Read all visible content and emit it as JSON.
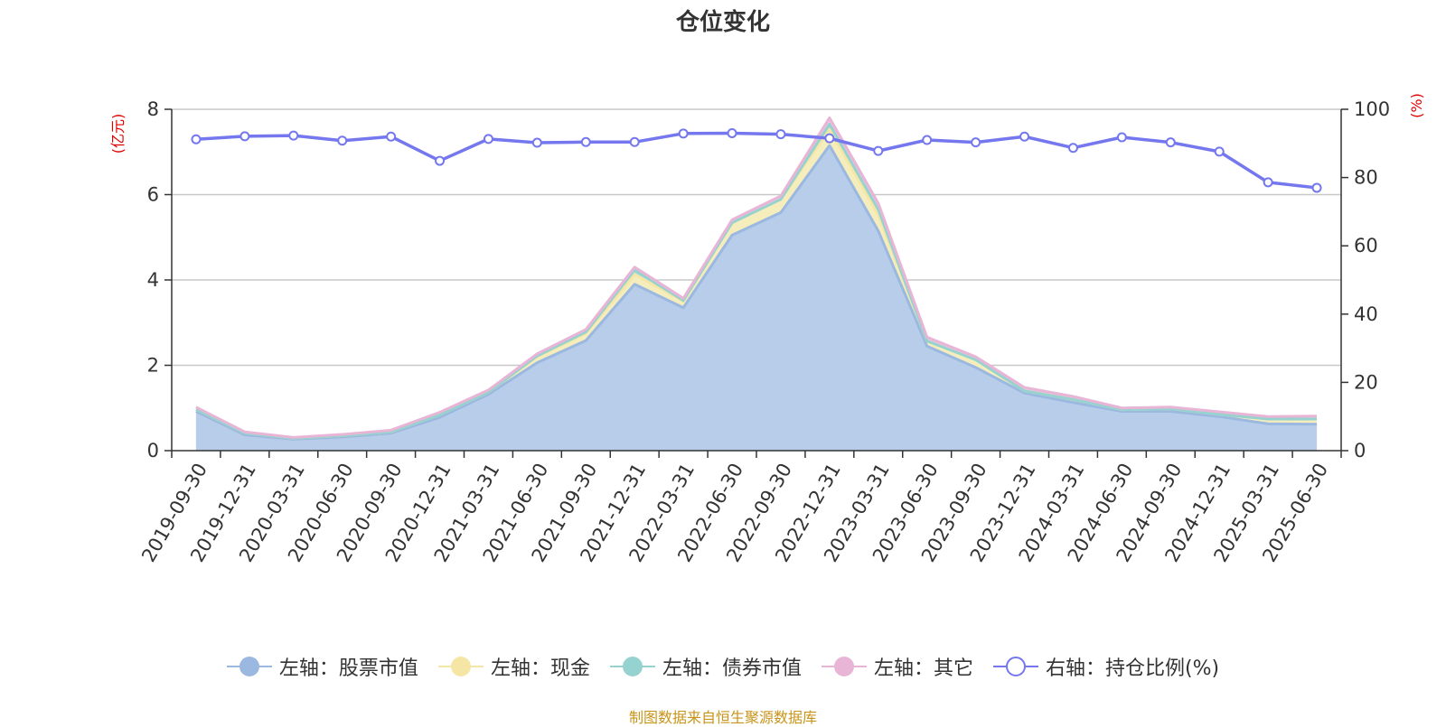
{
  "title": "仓位变化",
  "source": "制图数据来自恒生聚源数据库",
  "chart_data": {
    "type": "area",
    "title": "仓位变化",
    "left_axis_unit": "(亿元)",
    "right_axis_unit": "(%)",
    "ylim_left": [
      0,
      8
    ],
    "yticks_left": [
      "0",
      "2",
      "4",
      "6",
      "8"
    ],
    "ylim_right": [
      0,
      100
    ],
    "yticks_right": [
      "0",
      "20",
      "40",
      "60",
      "80",
      "100"
    ],
    "grid": true,
    "legend_position": "bottom",
    "categories": [
      "2019-09-30",
      "2019-12-31",
      "2020-03-31",
      "2020-06-30",
      "2020-09-30",
      "2020-12-31",
      "2021-03-31",
      "2021-06-30",
      "2021-09-30",
      "2021-12-31",
      "2022-03-31",
      "2022-06-30",
      "2022-09-30",
      "2022-12-31",
      "2023-03-31",
      "2023-06-30",
      "2023-09-30",
      "2023-12-31",
      "2024-03-31",
      "2024-06-30",
      "2024-09-30",
      "2024-12-31",
      "2025-03-31",
      "2025-06-30"
    ],
    "series": [
      {
        "name": "左轴：股票市值",
        "axis": "left",
        "stacked": true,
        "color": "#9ab8e0",
        "fill": "#b8cdea",
        "values": [
          0.92,
          0.37,
          0.27,
          0.32,
          0.41,
          0.78,
          1.32,
          2.06,
          2.58,
          3.9,
          3.35,
          5.05,
          5.58,
          7.15,
          5.15,
          2.45,
          1.95,
          1.35,
          1.13,
          0.92,
          0.92,
          0.8,
          0.63,
          0.62
        ]
      },
      {
        "name": "左轴：现金",
        "axis": "left",
        "stacked": true,
        "color": "#f5e6a6",
        "fill": "#f6edbc",
        "values": [
          0.05,
          0.04,
          0.02,
          0.03,
          0.03,
          0.06,
          0.05,
          0.14,
          0.17,
          0.23,
          0.15,
          0.29,
          0.31,
          0.38,
          0.38,
          0.12,
          0.18,
          0.05,
          0.07,
          0.04,
          0.06,
          0.05,
          0.11,
          0.12
        ]
      },
      {
        "name": "左轴：债券市值",
        "axis": "left",
        "stacked": true,
        "color": "#96d3d0",
        "fill": "#a9dbd8",
        "values": [
          0,
          0,
          0,
          0,
          0,
          0,
          0,
          0.02,
          0.03,
          0.1,
          0.02,
          0,
          0,
          0.12,
          0.12,
          0,
          0,
          0,
          0,
          0,
          0,
          0,
          0,
          0
        ]
      },
      {
        "name": "左轴：其它",
        "axis": "left",
        "stacked": true,
        "color": "#e8b5d6",
        "fill": "#eec6df",
        "values": [
          0.05,
          0.03,
          0.02,
          0.03,
          0.04,
          0.06,
          0.05,
          0.05,
          0.06,
          0.07,
          0.05,
          0.07,
          0.08,
          0.15,
          0.15,
          0.09,
          0.07,
          0.08,
          0.07,
          0.04,
          0.04,
          0.06,
          0.06,
          0.07
        ]
      },
      {
        "name": "右轴：持仓比例(%)",
        "axis": "right",
        "stacked": false,
        "color": "#7477ee",
        "values": [
          91.2,
          92.1,
          92.3,
          90.8,
          92.0,
          84.9,
          91.3,
          90.2,
          90.4,
          90.4,
          92.9,
          93.0,
          92.7,
          91.5,
          87.8,
          91.0,
          90.3,
          92.0,
          88.7,
          91.8,
          90.3,
          87.6,
          78.6,
          77.0
        ]
      }
    ]
  }
}
